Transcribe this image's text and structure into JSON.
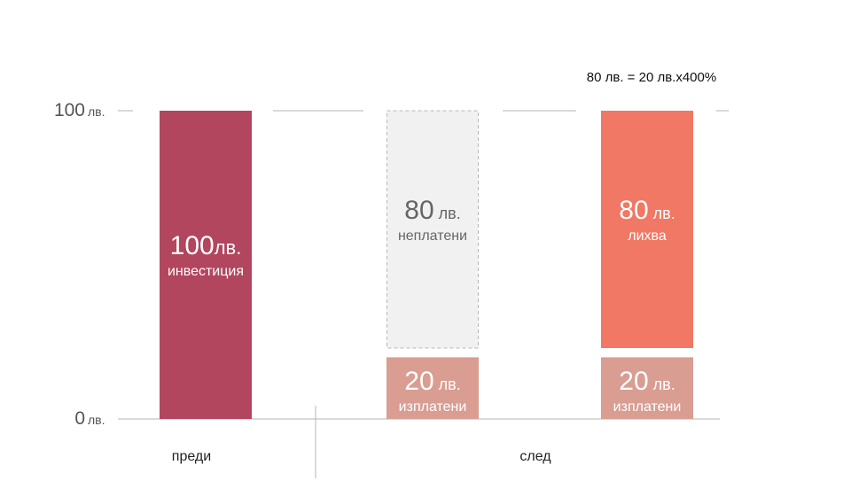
{
  "chart_data": {
    "type": "bar",
    "stacked": true,
    "ylim": [
      0,
      100
    ],
    "y_ticks": [
      {
        "value": 0,
        "label": "0",
        "unit": "лв."
      },
      {
        "value": 100,
        "label": "100",
        "unit": "лв."
      }
    ],
    "groups": [
      "преди",
      "след"
    ],
    "annotation": "80 лв. = 20 лв.x400%",
    "bars": [
      {
        "group": "преди",
        "segments": [
          {
            "from": 0,
            "to": 100,
            "value_text": "100",
            "unit": "лв.",
            "label": "инвестиция",
            "color": "#b2465e",
            "style": "solid"
          }
        ]
      },
      {
        "group": "след",
        "segments": [
          {
            "from": 0,
            "to": 20,
            "value_text": "20",
            "unit": "лв.",
            "label": "изплатени",
            "color": "#d99d92",
            "style": "solid"
          },
          {
            "from": 23,
            "to": 100,
            "value_text": "80",
            "unit": "лв.",
            "label": "неплатени",
            "color": "#f1f1f1",
            "style": "dashed"
          }
        ]
      },
      {
        "group": "след",
        "segments": [
          {
            "from": 0,
            "to": 20,
            "value_text": "20",
            "unit": "лв.",
            "label": "изплатени",
            "color": "#d99d92",
            "style": "solid"
          },
          {
            "from": 23,
            "to": 100,
            "value_text": "80",
            "unit": "лв.",
            "label": "лихва",
            "color": "#f07864",
            "style": "solid"
          }
        ]
      }
    ],
    "colors": {
      "axis": "#b5b5b5",
      "tick_text": "#555555",
      "light_text": "#ffffff",
      "dark_text": "#666666"
    }
  }
}
